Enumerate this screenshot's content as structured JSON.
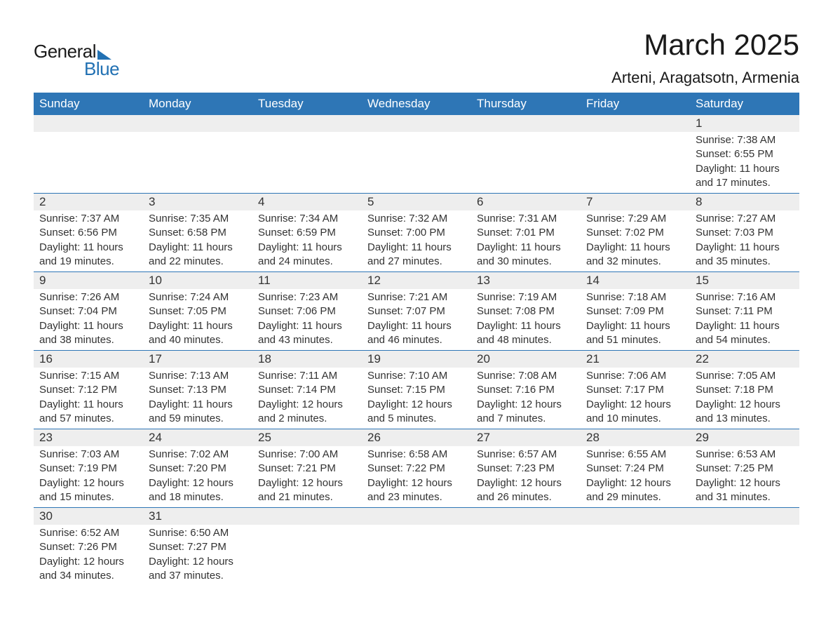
{
  "logo": {
    "line1": "General",
    "line2": "Blue",
    "text_color": "#1a1a1a",
    "accent_color": "#2271b3"
  },
  "header": {
    "month_title": "March 2025",
    "location": "Arteni, Aragatsotn, Armenia"
  },
  "style": {
    "header_bg": "#2e76b6",
    "header_fg": "#ffffff",
    "day_number_bg": "#eeeeee",
    "text_color": "#333333",
    "week_separator_color": "#2e76b6",
    "title_fontsize": 42,
    "location_fontsize": 22,
    "weekday_fontsize": 17,
    "daynum_fontsize": 17,
    "body_fontsize": 15
  },
  "weekdays": [
    "Sunday",
    "Monday",
    "Tuesday",
    "Wednesday",
    "Thursday",
    "Friday",
    "Saturday"
  ],
  "weeks": [
    [
      {
        "num": "",
        "lines": []
      },
      {
        "num": "",
        "lines": []
      },
      {
        "num": "",
        "lines": []
      },
      {
        "num": "",
        "lines": []
      },
      {
        "num": "",
        "lines": []
      },
      {
        "num": "",
        "lines": []
      },
      {
        "num": "1",
        "lines": [
          "Sunrise: 7:38 AM",
          "Sunset: 6:55 PM",
          "Daylight: 11 hours",
          "and 17 minutes."
        ]
      }
    ],
    [
      {
        "num": "2",
        "lines": [
          "Sunrise: 7:37 AM",
          "Sunset: 6:56 PM",
          "Daylight: 11 hours",
          "and 19 minutes."
        ]
      },
      {
        "num": "3",
        "lines": [
          "Sunrise: 7:35 AM",
          "Sunset: 6:58 PM",
          "Daylight: 11 hours",
          "and 22 minutes."
        ]
      },
      {
        "num": "4",
        "lines": [
          "Sunrise: 7:34 AM",
          "Sunset: 6:59 PM",
          "Daylight: 11 hours",
          "and 24 minutes."
        ]
      },
      {
        "num": "5",
        "lines": [
          "Sunrise: 7:32 AM",
          "Sunset: 7:00 PM",
          "Daylight: 11 hours",
          "and 27 minutes."
        ]
      },
      {
        "num": "6",
        "lines": [
          "Sunrise: 7:31 AM",
          "Sunset: 7:01 PM",
          "Daylight: 11 hours",
          "and 30 minutes."
        ]
      },
      {
        "num": "7",
        "lines": [
          "Sunrise: 7:29 AM",
          "Sunset: 7:02 PM",
          "Daylight: 11 hours",
          "and 32 minutes."
        ]
      },
      {
        "num": "8",
        "lines": [
          "Sunrise: 7:27 AM",
          "Sunset: 7:03 PM",
          "Daylight: 11 hours",
          "and 35 minutes."
        ]
      }
    ],
    [
      {
        "num": "9",
        "lines": [
          "Sunrise: 7:26 AM",
          "Sunset: 7:04 PM",
          "Daylight: 11 hours",
          "and 38 minutes."
        ]
      },
      {
        "num": "10",
        "lines": [
          "Sunrise: 7:24 AM",
          "Sunset: 7:05 PM",
          "Daylight: 11 hours",
          "and 40 minutes."
        ]
      },
      {
        "num": "11",
        "lines": [
          "Sunrise: 7:23 AM",
          "Sunset: 7:06 PM",
          "Daylight: 11 hours",
          "and 43 minutes."
        ]
      },
      {
        "num": "12",
        "lines": [
          "Sunrise: 7:21 AM",
          "Sunset: 7:07 PM",
          "Daylight: 11 hours",
          "and 46 minutes."
        ]
      },
      {
        "num": "13",
        "lines": [
          "Sunrise: 7:19 AM",
          "Sunset: 7:08 PM",
          "Daylight: 11 hours",
          "and 48 minutes."
        ]
      },
      {
        "num": "14",
        "lines": [
          "Sunrise: 7:18 AM",
          "Sunset: 7:09 PM",
          "Daylight: 11 hours",
          "and 51 minutes."
        ]
      },
      {
        "num": "15",
        "lines": [
          "Sunrise: 7:16 AM",
          "Sunset: 7:11 PM",
          "Daylight: 11 hours",
          "and 54 minutes."
        ]
      }
    ],
    [
      {
        "num": "16",
        "lines": [
          "Sunrise: 7:15 AM",
          "Sunset: 7:12 PM",
          "Daylight: 11 hours",
          "and 57 minutes."
        ]
      },
      {
        "num": "17",
        "lines": [
          "Sunrise: 7:13 AM",
          "Sunset: 7:13 PM",
          "Daylight: 11 hours",
          "and 59 minutes."
        ]
      },
      {
        "num": "18",
        "lines": [
          "Sunrise: 7:11 AM",
          "Sunset: 7:14 PM",
          "Daylight: 12 hours",
          "and 2 minutes."
        ]
      },
      {
        "num": "19",
        "lines": [
          "Sunrise: 7:10 AM",
          "Sunset: 7:15 PM",
          "Daylight: 12 hours",
          "and 5 minutes."
        ]
      },
      {
        "num": "20",
        "lines": [
          "Sunrise: 7:08 AM",
          "Sunset: 7:16 PM",
          "Daylight: 12 hours",
          "and 7 minutes."
        ]
      },
      {
        "num": "21",
        "lines": [
          "Sunrise: 7:06 AM",
          "Sunset: 7:17 PM",
          "Daylight: 12 hours",
          "and 10 minutes."
        ]
      },
      {
        "num": "22",
        "lines": [
          "Sunrise: 7:05 AM",
          "Sunset: 7:18 PM",
          "Daylight: 12 hours",
          "and 13 minutes."
        ]
      }
    ],
    [
      {
        "num": "23",
        "lines": [
          "Sunrise: 7:03 AM",
          "Sunset: 7:19 PM",
          "Daylight: 12 hours",
          "and 15 minutes."
        ]
      },
      {
        "num": "24",
        "lines": [
          "Sunrise: 7:02 AM",
          "Sunset: 7:20 PM",
          "Daylight: 12 hours",
          "and 18 minutes."
        ]
      },
      {
        "num": "25",
        "lines": [
          "Sunrise: 7:00 AM",
          "Sunset: 7:21 PM",
          "Daylight: 12 hours",
          "and 21 minutes."
        ]
      },
      {
        "num": "26",
        "lines": [
          "Sunrise: 6:58 AM",
          "Sunset: 7:22 PM",
          "Daylight: 12 hours",
          "and 23 minutes."
        ]
      },
      {
        "num": "27",
        "lines": [
          "Sunrise: 6:57 AM",
          "Sunset: 7:23 PM",
          "Daylight: 12 hours",
          "and 26 minutes."
        ]
      },
      {
        "num": "28",
        "lines": [
          "Sunrise: 6:55 AM",
          "Sunset: 7:24 PM",
          "Daylight: 12 hours",
          "and 29 minutes."
        ]
      },
      {
        "num": "29",
        "lines": [
          "Sunrise: 6:53 AM",
          "Sunset: 7:25 PM",
          "Daylight: 12 hours",
          "and 31 minutes."
        ]
      }
    ],
    [
      {
        "num": "30",
        "lines": [
          "Sunrise: 6:52 AM",
          "Sunset: 7:26 PM",
          "Daylight: 12 hours",
          "and 34 minutes."
        ]
      },
      {
        "num": "31",
        "lines": [
          "Sunrise: 6:50 AM",
          "Sunset: 7:27 PM",
          "Daylight: 12 hours",
          "and 37 minutes."
        ]
      },
      {
        "num": "",
        "lines": []
      },
      {
        "num": "",
        "lines": []
      },
      {
        "num": "",
        "lines": []
      },
      {
        "num": "",
        "lines": []
      },
      {
        "num": "",
        "lines": []
      }
    ]
  ]
}
